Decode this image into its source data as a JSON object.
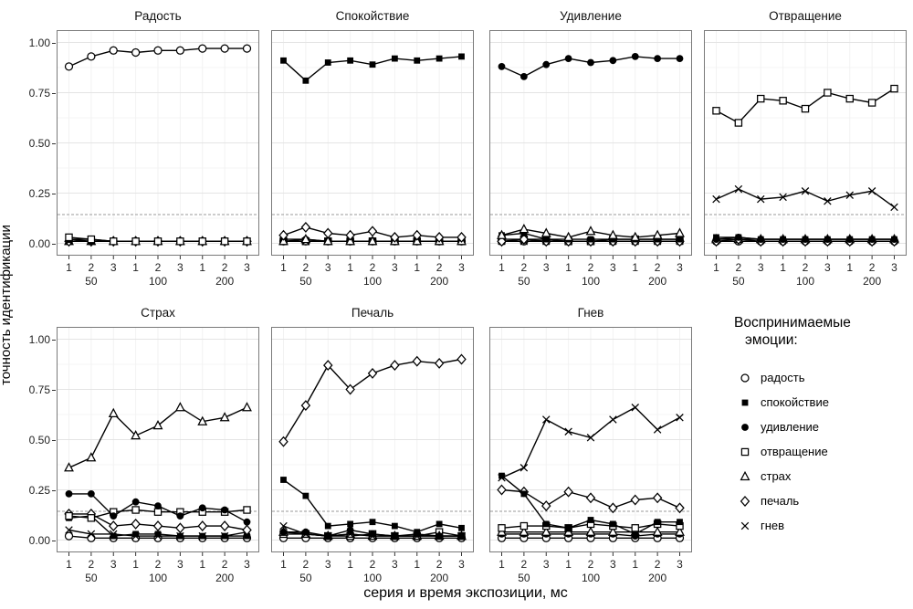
{
  "figure": {
    "y_axis_title": "точность идентификации",
    "x_axis_title": "серия и время экспозиции, мс",
    "y_ticks": [
      "1.00",
      "0.75",
      "0.50",
      "0.25",
      "0.00"
    ],
    "x_series_ticks": [
      "1",
      "2",
      "3",
      "1",
      "2",
      "3",
      "1",
      "2",
      "3"
    ],
    "x_group_ticks": [
      "50",
      "100",
      "200"
    ],
    "colors": {
      "line": "#000000",
      "grid_major": "#e4e4e4",
      "grid_minor": "#f2f2f2",
      "panel_border": "#7a7a7a",
      "chance_line": "#9a9a9a",
      "background": "#ffffff"
    }
  },
  "legend": {
    "title_line1": "Воспринимаемые",
    "title_line2": "эмоции:",
    "items": [
      {
        "label": "радость",
        "marker": "open-circle"
      },
      {
        "label": "спокойствие",
        "marker": "filled-square"
      },
      {
        "label": "удивление",
        "marker": "filled-circle"
      },
      {
        "label": "отвращение",
        "marker": "open-square"
      },
      {
        "label": "страх",
        "marker": "open-triangle"
      },
      {
        "label": "печаль",
        "marker": "open-diamond"
      },
      {
        "label": "гнев",
        "marker": "x-cross"
      }
    ]
  },
  "chart_data": {
    "type": "line",
    "x_positions": [
      "50-1",
      "50-2",
      "50-3",
      "100-1",
      "100-2",
      "100-3",
      "200-1",
      "200-2",
      "200-3"
    ],
    "ylim": [
      0,
      1
    ],
    "chance_level": 0.143,
    "grid": true,
    "legend_position": "right-bottom",
    "panels": [
      {
        "title": "Радость",
        "series": [
          {
            "name": "радость",
            "values": [
              0.88,
              0.93,
              0.96,
              0.95,
              0.96,
              0.96,
              0.97,
              0.97,
              0.97
            ]
          },
          {
            "name": "спокойствие",
            "values": [
              0.02,
              0.02,
              0.01,
              0.01,
              0.01,
              0.01,
              0.01,
              0.01,
              0.01
            ]
          },
          {
            "name": "удивление",
            "values": [
              0.02,
              0.01,
              0.01,
              0.01,
              0.01,
              0.01,
              0.01,
              0.01,
              0.01
            ]
          },
          {
            "name": "отвращение",
            "values": [
              0.03,
              0.02,
              0.01,
              0.01,
              0.01,
              0.01,
              0.01,
              0.01,
              0.01
            ]
          },
          {
            "name": "страх",
            "values": [
              0.01,
              0.01,
              0.01,
              0.01,
              0.01,
              0.01,
              0.01,
              0.01,
              0.01
            ]
          },
          {
            "name": "печаль",
            "values": [
              0.01,
              0.01,
              0.01,
              0.01,
              0.01,
              0.01,
              0.01,
              0.01,
              0.01
            ]
          },
          {
            "name": "гнев",
            "values": [
              0.01,
              0.01,
              0.01,
              0.01,
              0.01,
              0.01,
              0.01,
              0.01,
              0.01
            ]
          }
        ]
      },
      {
        "title": "Спокойствие",
        "series": [
          {
            "name": "радость",
            "values": [
              0.01,
              0.01,
              0.01,
              0.01,
              0.01,
              0.01,
              0.01,
              0.01,
              0.01
            ]
          },
          {
            "name": "спокойствие",
            "values": [
              0.91,
              0.81,
              0.9,
              0.91,
              0.89,
              0.92,
              0.91,
              0.92,
              0.93
            ]
          },
          {
            "name": "удивление",
            "values": [
              0.02,
              0.02,
              0.01,
              0.01,
              0.01,
              0.01,
              0.01,
              0.01,
              0.01
            ]
          },
          {
            "name": "отвращение",
            "values": [
              0.01,
              0.01,
              0.01,
              0.01,
              0.01,
              0.01,
              0.01,
              0.01,
              0.01
            ]
          },
          {
            "name": "страх",
            "values": [
              0.01,
              0.02,
              0.01,
              0.01,
              0.01,
              0.01,
              0.01,
              0.01,
              0.01
            ]
          },
          {
            "name": "печаль",
            "values": [
              0.04,
              0.08,
              0.05,
              0.04,
              0.06,
              0.03,
              0.04,
              0.03,
              0.03
            ]
          },
          {
            "name": "гнев",
            "values": [
              0.01,
              0.01,
              0.01,
              0.01,
              0.01,
              0.01,
              0.01,
              0.01,
              0.01
            ]
          }
        ]
      },
      {
        "title": "Удивление",
        "series": [
          {
            "name": "радость",
            "values": [
              0.01,
              0.01,
              0.01,
              0.01,
              0.01,
              0.01,
              0.01,
              0.01,
              0.01
            ]
          },
          {
            "name": "спокойствие",
            "values": [
              0.04,
              0.05,
              0.02,
              0.02,
              0.02,
              0.02,
              0.02,
              0.02,
              0.02
            ]
          },
          {
            "name": "удивление",
            "values": [
              0.88,
              0.83,
              0.89,
              0.92,
              0.9,
              0.91,
              0.93,
              0.92,
              0.92
            ]
          },
          {
            "name": "отвращение",
            "values": [
              0.02,
              0.02,
              0.02,
              0.01,
              0.01,
              0.02,
              0.02,
              0.02,
              0.02
            ]
          },
          {
            "name": "страх",
            "values": [
              0.04,
              0.07,
              0.05,
              0.03,
              0.06,
              0.04,
              0.03,
              0.04,
              0.05
            ]
          },
          {
            "name": "печаль",
            "values": [
              0.01,
              0.02,
              0.01,
              0.01,
              0.01,
              0.01,
              0.01,
              0.01,
              0.01
            ]
          },
          {
            "name": "гнев",
            "values": [
              0.01,
              0.01,
              0.01,
              0.01,
              0.01,
              0.01,
              0.01,
              0.01,
              0.01
            ]
          }
        ]
      },
      {
        "title": "Отвращение",
        "series": [
          {
            "name": "радость",
            "values": [
              0.01,
              0.01,
              0.01,
              0.01,
              0.01,
              0.01,
              0.01,
              0.01,
              0.01
            ]
          },
          {
            "name": "спокойствие",
            "values": [
              0.03,
              0.03,
              0.02,
              0.02,
              0.02,
              0.02,
              0.02,
              0.02,
              0.02
            ]
          },
          {
            "name": "удивление",
            "values": [
              0.02,
              0.03,
              0.02,
              0.02,
              0.02,
              0.02,
              0.02,
              0.02,
              0.02
            ]
          },
          {
            "name": "отвращение",
            "values": [
              0.66,
              0.6,
              0.72,
              0.71,
              0.67,
              0.75,
              0.72,
              0.7,
              0.77
            ]
          },
          {
            "name": "страх",
            "values": [
              0.02,
              0.02,
              0.02,
              0.02,
              0.02,
              0.02,
              0.02,
              0.02,
              0.02
            ]
          },
          {
            "name": "печаль",
            "values": [
              0.01,
              0.02,
              0.01,
              0.01,
              0.01,
              0.01,
              0.01,
              0.01,
              0.01
            ]
          },
          {
            "name": "гнев",
            "values": [
              0.22,
              0.27,
              0.22,
              0.23,
              0.26,
              0.21,
              0.24,
              0.26,
              0.18
            ]
          }
        ]
      },
      {
        "title": "Страх",
        "series": [
          {
            "name": "радость",
            "values": [
              0.02,
              0.01,
              0.01,
              0.01,
              0.01,
              0.01,
              0.01,
              0.01,
              0.01
            ]
          },
          {
            "name": "спокойствие",
            "values": [
              0.11,
              0.12,
              0.02,
              0.03,
              0.03,
              0.02,
              0.02,
              0.02,
              0.02
            ]
          },
          {
            "name": "удивление",
            "values": [
              0.23,
              0.23,
              0.12,
              0.19,
              0.17,
              0.12,
              0.16,
              0.15,
              0.09
            ]
          },
          {
            "name": "отвращение",
            "values": [
              0.12,
              0.11,
              0.14,
              0.15,
              0.14,
              0.14,
              0.14,
              0.14,
              0.15
            ]
          },
          {
            "name": "страх",
            "values": [
              0.36,
              0.41,
              0.63,
              0.52,
              0.57,
              0.66,
              0.59,
              0.61,
              0.66
            ]
          },
          {
            "name": "печаль",
            "values": [
              0.13,
              0.13,
              0.07,
              0.08,
              0.07,
              0.06,
              0.07,
              0.07,
              0.05
            ]
          },
          {
            "name": "гнев",
            "values": [
              0.05,
              0.03,
              0.03,
              0.02,
              0.02,
              0.02,
              0.02,
              0.02,
              0.04
            ]
          }
        ]
      },
      {
        "title": "Печаль",
        "series": [
          {
            "name": "радость",
            "values": [
              0.01,
              0.01,
              0.01,
              0.01,
              0.01,
              0.01,
              0.01,
              0.01,
              0.01
            ]
          },
          {
            "name": "спокойствие",
            "values": [
              0.3,
              0.22,
              0.07,
              0.08,
              0.09,
              0.07,
              0.04,
              0.08,
              0.06
            ]
          },
          {
            "name": "удивление",
            "values": [
              0.04,
              0.04,
              0.02,
              0.05,
              0.03,
              0.02,
              0.03,
              0.02,
              0.02
            ]
          },
          {
            "name": "отвращение",
            "values": [
              0.03,
              0.03,
              0.02,
              0.02,
              0.03,
              0.02,
              0.02,
              0.04,
              0.02
            ]
          },
          {
            "name": "страх",
            "values": [
              0.04,
              0.03,
              0.02,
              0.03,
              0.02,
              0.02,
              0.02,
              0.02,
              0.02
            ]
          },
          {
            "name": "печаль",
            "values": [
              0.49,
              0.67,
              0.87,
              0.75,
              0.83,
              0.87,
              0.89,
              0.88,
              0.9
            ]
          },
          {
            "name": "гнев",
            "values": [
              0.07,
              0.03,
              0.02,
              0.03,
              0.02,
              0.02,
              0.02,
              0.02,
              0.02
            ]
          }
        ]
      },
      {
        "title": "Гнев",
        "series": [
          {
            "name": "радость",
            "values": [
              0.01,
              0.01,
              0.01,
              0.01,
              0.01,
              0.01,
              0.01,
              0.01,
              0.01
            ]
          },
          {
            "name": "спокойствие",
            "values": [
              0.32,
              0.23,
              0.08,
              0.06,
              0.1,
              0.08,
              0.03,
              0.09,
              0.09
            ]
          },
          {
            "name": "удивление",
            "values": [
              0.03,
              0.03,
              0.03,
              0.03,
              0.03,
              0.03,
              0.02,
              0.03,
              0.03
            ]
          },
          {
            "name": "отвращение",
            "values": [
              0.06,
              0.07,
              0.07,
              0.06,
              0.08,
              0.07,
              0.06,
              0.08,
              0.07
            ]
          },
          {
            "name": "страх",
            "values": [
              0.04,
              0.04,
              0.04,
              0.04,
              0.04,
              0.04,
              0.04,
              0.04,
              0.04
            ]
          },
          {
            "name": "печаль",
            "values": [
              0.25,
              0.24,
              0.17,
              0.24,
              0.21,
              0.16,
              0.2,
              0.21,
              0.16
            ]
          },
          {
            "name": "гнев",
            "values": [
              0.31,
              0.36,
              0.6,
              0.54,
              0.51,
              0.6,
              0.66,
              0.55,
              0.61
            ]
          }
        ]
      }
    ]
  }
}
